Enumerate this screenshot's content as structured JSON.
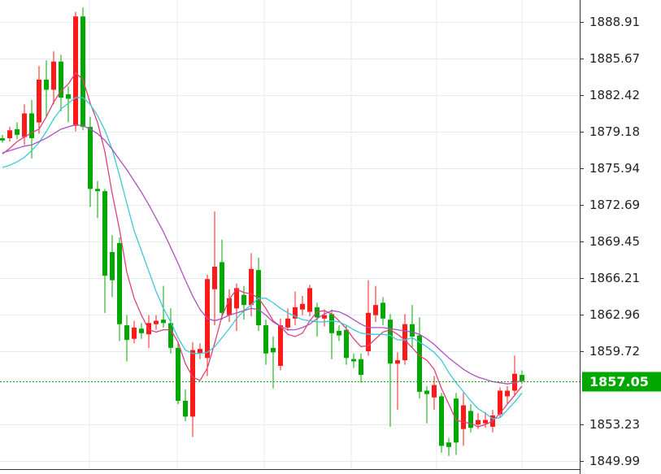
{
  "chart_data": {
    "type": "candlestick",
    "ylim": [
      1849.24,
      1890.86
    ],
    "yticks": [
      1888.91,
      1885.67,
      1882.42,
      1879.18,
      1875.94,
      1872.69,
      1869.45,
      1866.21,
      1862.96,
      1859.72,
      1853.23,
      1849.99
    ],
    "grid": true,
    "up_color": "#ff1a1a",
    "down_color": "#00a800",
    "last_price": 1857.05,
    "last_price_color": "#00a800",
    "open": [
      1878.6,
      1878.6,
      1879.4,
      1878.7,
      1880.8,
      1880.0,
      1883.8,
      1882.9,
      1885.4,
      1882.5,
      1879.7,
      1889.4,
      1879.6,
      1874.1,
      1873.9,
      1868.5,
      1869.3,
      1862.0,
      1860.8,
      1861.7,
      1861.2,
      1862.1,
      1862.5,
      1862.2,
      1860.0,
      1855.3,
      1853.9,
      1859.5,
      1859.1,
      1865.2,
      1867.6,
      1862.9,
      1863.5,
      1864.7,
      1863.8,
      1866.9,
      1862.0,
      1860.0,
      1858.4,
      1861.8,
      1862.6,
      1863.4,
      1863.2,
      1863.6,
      1862.6,
      1863.0,
      1861.5,
      1861.6,
      1859.0,
      1859.0,
      1859.7,
      1862.9,
      1864.0,
      1862.5,
      1858.6,
      1858.9,
      1862.1,
      1861.1,
      1856.2,
      1855.6,
      1855.7,
      1851.6,
      1855.5,
      1852.8,
      1854.4,
      1853.2,
      1853.3,
      1853.0,
      1854.1,
      1855.7,
      1856.2,
      1857.6
    ],
    "high": [
      1878.9,
      1879.6,
      1880.0,
      1881.6,
      1882.0,
      1885.0,
      1885.5,
      1886.3,
      1886.0,
      1883.2,
      1889.8,
      1890.2,
      1880.5,
      1874.8,
      1874.1,
      1870.0,
      1869.8,
      1862.9,
      1862.4,
      1862.2,
      1862.9,
      1862.9,
      1865.5,
      1863.5,
      1860.5,
      1856.3,
      1860.5,
      1860.4,
      1866.5,
      1872.1,
      1869.6,
      1865.2,
      1865.7,
      1865.5,
      1868.4,
      1868.0,
      1862.5,
      1861.0,
      1862.6,
      1863.5,
      1865.0,
      1864.6,
      1865.6,
      1864.0,
      1863.4,
      1863.4,
      1862.0,
      1862.0,
      1859.5,
      1859.5,
      1866.0,
      1865.5,
      1864.5,
      1863.0,
      1859.6,
      1863.0,
      1863.8,
      1862.7,
      1856.6,
      1857.5,
      1856.0,
      1852.0,
      1856.0,
      1856.0,
      1855.0,
      1854.2,
      1854.3,
      1854.5,
      1856.5,
      1856.6,
      1859.3,
      1858.0
    ],
    "low": [
      1878.2,
      1878.3,
      1878.5,
      1878.0,
      1876.8,
      1879.0,
      1880.5,
      1881.6,
      1881.0,
      1880.0,
      1879.2,
      1879.3,
      1872.5,
      1871.5,
      1863.1,
      1864.5,
      1860.6,
      1858.8,
      1860.4,
      1860.8,
      1860.0,
      1861.6,
      1861.8,
      1859.5,
      1855.0,
      1853.5,
      1852.1,
      1859.0,
      1857.5,
      1862.0,
      1862.5,
      1862.3,
      1861.5,
      1862.5,
      1862.8,
      1861.5,
      1858.5,
      1856.4,
      1858.0,
      1861.5,
      1862.0,
      1862.9,
      1862.8,
      1861.0,
      1861.9,
      1859.0,
      1860.6,
      1858.5,
      1858.2,
      1856.9,
      1859.3,
      1862.3,
      1862.0,
      1853.0,
      1854.5,
      1858.5,
      1860.0,
      1855.5,
      1853.3,
      1854.5,
      1850.7,
      1850.4,
      1850.5,
      1851.3,
      1852.5,
      1852.8,
      1852.9,
      1852.5,
      1853.8,
      1855.0,
      1855.7,
      1856.8
    ],
    "close": [
      1878.4,
      1879.3,
      1878.9,
      1880.8,
      1878.6,
      1883.8,
      1882.9,
      1885.4,
      1882.2,
      1882.1,
      1889.4,
      1879.6,
      1874.1,
      1873.9,
      1866.4,
      1866.0,
      1862.1,
      1860.7,
      1861.8,
      1861.3,
      1862.2,
      1862.4,
      1862.2,
      1860.0,
      1855.3,
      1853.9,
      1859.8,
      1859.9,
      1866.1,
      1867.2,
      1863.1,
      1864.4,
      1865.3,
      1863.8,
      1867.0,
      1862.0,
      1859.5,
      1859.6,
      1862.0,
      1862.6,
      1863.6,
      1863.9,
      1865.3,
      1862.7,
      1862.9,
      1861.3,
      1861.1,
      1859.1,
      1858.8,
      1857.6,
      1863.1,
      1863.8,
      1862.6,
      1858.6,
      1858.9,
      1862.1,
      1861.0,
      1856.1,
      1855.9,
      1856.7,
      1851.3,
      1851.2,
      1851.6,
      1854.9,
      1852.9,
      1853.6,
      1853.6,
      1854.0,
      1856.2,
      1856.2,
      1857.7,
      1857.05
    ],
    "series": [
      {
        "color": "#e0407a",
        "values": [
          1877.2,
          1877.7,
          1878.3,
          1878.7,
          1879.1,
          1879.4,
          1880.5,
          1881.8,
          1882.8,
          1883.4,
          1884.4,
          1883.8,
          1881.7,
          1880.0,
          1877.4,
          1873.7,
          1870.5,
          1866.7,
          1864.4,
          1862.9,
          1861.6,
          1861.4,
          1861.6,
          1861.6,
          1860.5,
          1858.6,
          1857.4,
          1857.1,
          1858.2,
          1860.4,
          1862.8,
          1864.3,
          1865.2,
          1864.9,
          1864.8,
          1864.4,
          1863.5,
          1862.4,
          1861.9,
          1861.2,
          1861.0,
          1861.3,
          1862.4,
          1863.2,
          1863.3,
          1863.0,
          1862.4,
          1861.7,
          1860.8,
          1860.1,
          1860.2,
          1860.8,
          1861.4,
          1861.6,
          1861.2,
          1860.7,
          1860.0,
          1859.3,
          1858.9,
          1858.1,
          1856.4,
          1855.0,
          1853.6,
          1853.4,
          1853.3,
          1853.0,
          1853.2,
          1853.5,
          1854.2,
          1855.0,
          1855.8,
          1856.6
        ]
      },
      {
        "color": "#3cc8d8",
        "values": [
          1876.0,
          1876.2,
          1876.5,
          1876.9,
          1877.5,
          1878.2,
          1879.2,
          1880.3,
          1881.2,
          1881.7,
          1882.2,
          1882.2,
          1881.6,
          1880.6,
          1879.3,
          1877.6,
          1875.3,
          1872.8,
          1870.4,
          1868.6,
          1866.8,
          1865.0,
          1863.5,
          1862.3,
          1860.9,
          1859.8,
          1859.5,
          1859.5,
          1859.6,
          1860.1,
          1860.9,
          1861.7,
          1862.6,
          1863.3,
          1863.8,
          1864.4,
          1864.4,
          1864.0,
          1863.5,
          1863.1,
          1862.8,
          1862.5,
          1862.4,
          1862.3,
          1862.3,
          1862.4,
          1862.3,
          1862.0,
          1861.6,
          1861.3,
          1861.2,
          1861.2,
          1861.2,
          1861.1,
          1860.7,
          1860.7,
          1860.9,
          1860.5,
          1860.1,
          1859.6,
          1858.9,
          1857.8,
          1856.9,
          1856.1,
          1855.3,
          1854.6,
          1854.2,
          1853.7,
          1853.8,
          1854.5,
          1855.2,
          1856.0
        ]
      },
      {
        "color": "#b050c0",
        "values": [
          1877.3,
          1877.5,
          1877.7,
          1877.9,
          1878.0,
          1878.3,
          1878.6,
          1879.0,
          1879.4,
          1879.6,
          1879.8,
          1879.7,
          1879.4,
          1879.0,
          1878.4,
          1877.6,
          1876.7,
          1875.8,
          1874.8,
          1873.8,
          1872.7,
          1871.5,
          1870.3,
          1868.9,
          1867.5,
          1866.0,
          1864.6,
          1863.4,
          1862.6,
          1862.4,
          1862.6,
          1862.9,
          1863.1,
          1863.3,
          1863.5,
          1863.4,
          1862.9,
          1862.3,
          1861.9,
          1861.6,
          1861.6,
          1861.8,
          1862.1,
          1862.6,
          1863.0,
          1863.3,
          1863.2,
          1862.9,
          1862.5,
          1862.1,
          1861.8,
          1861.8,
          1861.8,
          1861.7,
          1861.6,
          1861.5,
          1861.4,
          1861.2,
          1860.8,
          1860.3,
          1859.7,
          1859.1,
          1858.6,
          1858.1,
          1857.7,
          1857.4,
          1857.2,
          1857.0,
          1856.9,
          1856.8,
          1856.9,
          1857.1
        ]
      }
    ]
  }
}
